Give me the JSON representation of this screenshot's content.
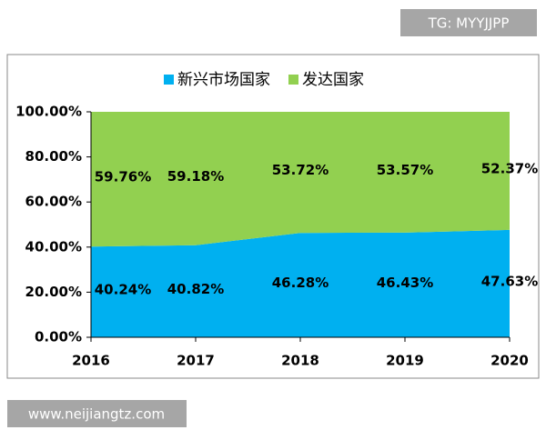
{
  "chart_data": {
    "type": "stacked_area",
    "x": [
      "2016",
      "2017",
      "2018",
      "2019",
      "2020"
    ],
    "series": [
      {
        "name": "新兴市场国家",
        "color": "#00B0F0",
        "values": [
          40.24,
          40.82,
          46.28,
          46.43,
          47.63
        ],
        "value_labels": [
          "40.24%",
          "40.82%",
          "46.28%",
          "46.43%",
          "47.63%"
        ]
      },
      {
        "name": "发达国家",
        "color": "#92D050",
        "values": [
          59.76,
          59.18,
          53.72,
          53.57,
          52.37
        ],
        "value_labels": [
          "59.76%",
          "59.18%",
          "53.72%",
          "53.57%",
          "52.37%"
        ]
      }
    ],
    "ylim": [
      0,
      100
    ],
    "yticks": [
      {
        "value": 0,
        "label": "0.00%"
      },
      {
        "value": 20,
        "label": "20.00%"
      },
      {
        "value": 40,
        "label": "40.00%"
      },
      {
        "value": 60,
        "label": "60.00%"
      },
      {
        "value": 80,
        "label": "80.00%"
      },
      {
        "value": 100,
        "label": "100.00%"
      }
    ],
    "legend": "top",
    "annotations": [
      "TG: MYYJJPP",
      "www.neijiangtz.com"
    ]
  }
}
